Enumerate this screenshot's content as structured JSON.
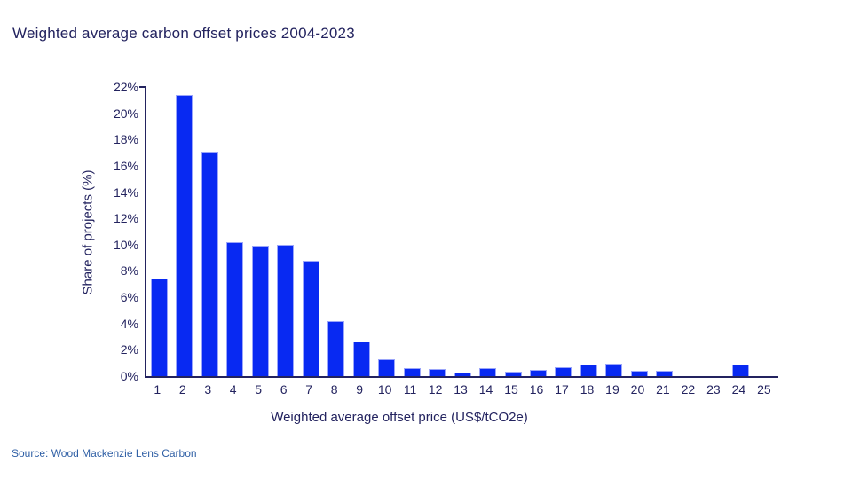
{
  "header": {
    "title": "Weighted average carbon offset prices 2004-2023"
  },
  "footer": {
    "source": "Source: Wood Mackenzie Lens Carbon"
  },
  "colors": {
    "title_navy": "#23235f",
    "axis_navy": "#23235f",
    "bar_blue": "#0829f2",
    "bar_border": "#9aa5fa",
    "source_blue": "#2f5fa5",
    "background": "#ffffff"
  },
  "chart_data": {
    "type": "bar",
    "title": "Weighted average carbon offset prices 2004-2023",
    "xlabel": "Weighted average offset price (US$/tCO2e)",
    "ylabel": "Share of projects (%)",
    "categories": [
      1,
      2,
      3,
      4,
      5,
      6,
      7,
      8,
      9,
      10,
      11,
      12,
      13,
      14,
      15,
      16,
      17,
      18,
      19,
      20,
      21,
      22,
      23,
      24,
      25
    ],
    "values": [
      7.4,
      21.4,
      17.1,
      10.2,
      9.9,
      10.0,
      8.8,
      4.2,
      2.6,
      1.3,
      0.6,
      0.55,
      0.3,
      0.6,
      0.35,
      0.45,
      0.65,
      0.9,
      0.95,
      0.4,
      0.4,
      0,
      0,
      0.9,
      0
    ],
    "ylim": [
      0,
      22
    ],
    "ytick_step": 2,
    "ytick_suffix": "%",
    "grid": false,
    "legend": "none",
    "bar_color": "#0829f2",
    "bar_border_color": "#9aa5fa",
    "source": "Source: Wood Mackenzie Lens Carbon"
  }
}
